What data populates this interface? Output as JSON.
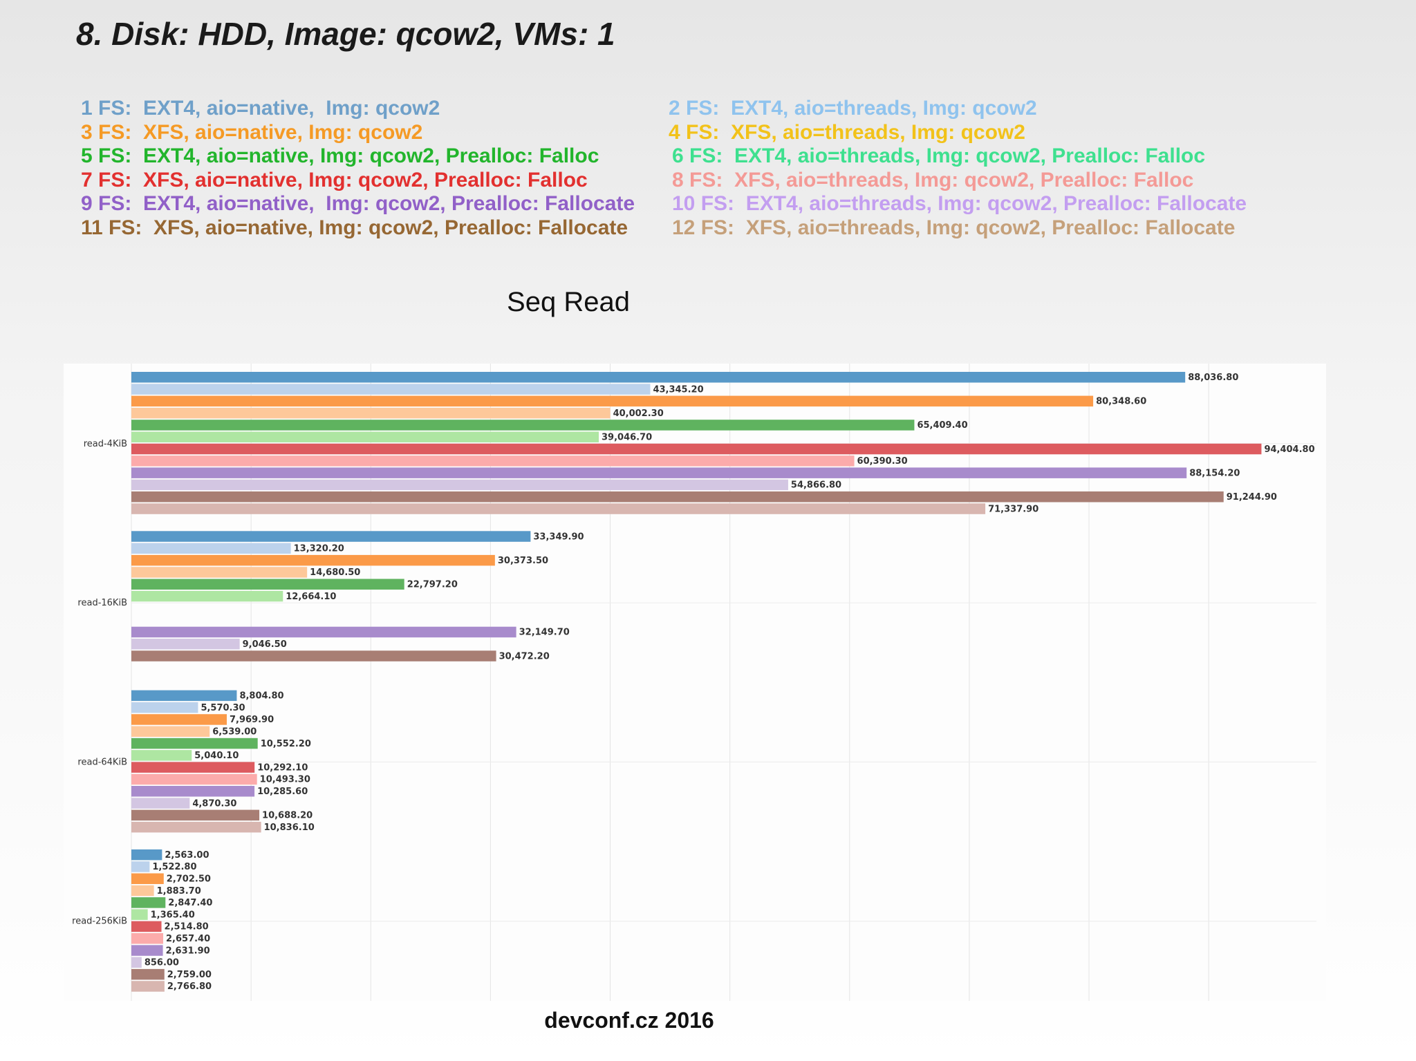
{
  "slide": {
    "title": "8. Disk: HDD, Image: qcow2, VMs: 1",
    "footer": "devconf.cz 2016"
  },
  "legend": [
    {
      "text": "1 FS:  EXT4, aio=native,  Img: qcow2",
      "color": "#6fa0c9"
    },
    {
      "text": "2 FS:  EXT4, aio=threads, Img: qcow2",
      "color": "#8fc3ee"
    },
    {
      "text": "3 FS:  XFS, aio=native, Img: qcow2",
      "color": "#f59a25"
    },
    {
      "text": "4 FS:  XFS, aio=threads, Img: qcow2",
      "color": "#f2c21a"
    },
    {
      "text": "5 FS:  EXT4, aio=native, Img: qcow2, Prealloc: Falloc",
      "color": "#22b52c"
    },
    {
      "text": "6 FS:  EXT4, aio=threads, Img: qcow2, Prealloc: Falloc",
      "color": "#3ee08f"
    },
    {
      "text": "7 FS:  XFS, aio=native, Img: qcow2, Prealloc: Falloc",
      "color": "#e2302f"
    },
    {
      "text": "8 FS:  XFS, aio=threads, Img: qcow2, Prealloc: Falloc",
      "color": "#f49a96"
    },
    {
      "text": "9 FS:  EXT4, aio=native,  Img: qcow2, Prealloc: Fallocate",
      "color": "#9160c8"
    },
    {
      "text": "10 FS:  EXT4, aio=threads, Img: qcow2, Prealloc: Fallocate",
      "color": "#c39ef0"
    },
    {
      "text": "11 FS:  XFS, aio=native, Img: qcow2, Prealloc: Fallocate",
      "color": "#966733"
    },
    {
      "text": "12 FS:  XFS, aio=threads, Img: qcow2, Prealloc: Fallocate",
      "color": "#c5a07a"
    }
  ],
  "chart_data": {
    "type": "bar",
    "orientation": "horizontal",
    "title": "Seq Read",
    "xlabel": "",
    "ylabel": "",
    "xlim": [
      0,
      99000
    ],
    "grid": true,
    "show_value_labels": true,
    "categories": [
      "read-4KiB",
      "read-16KiB",
      "read-64KiB",
      "read-256KiB"
    ],
    "series": [
      {
        "color": "#5899c8",
        "values": [
          88036.8,
          33349.9,
          8804.8,
          2563.0
        ],
        "labels": [
          "88,036.80",
          "33,349.90",
          "8,804.80",
          "2,563.00"
        ]
      },
      {
        "color": "#bcd2ec",
        "values": [
          43345.2,
          13320.2,
          5570.3,
          1522.8
        ],
        "labels": [
          "43,345.20",
          "13,320.20",
          "5,570.30",
          "1,522.80"
        ]
      },
      {
        "color": "#fb9a48",
        "values": [
          80348.6,
          30373.5,
          7969.9,
          2702.5
        ],
        "labels": [
          "80,348.60",
          "30,373.50",
          "7,969.90",
          "2,702.50"
        ]
      },
      {
        "color": "#fdc89a",
        "values": [
          40002.3,
          14680.5,
          6539.0,
          1883.7
        ],
        "labels": [
          "40,002.30",
          "14,680.50",
          "6,539.00",
          "1,883.70"
        ]
      },
      {
        "color": "#5fb35f",
        "values": [
          65409.4,
          22797.2,
          10552.2,
          2847.4
        ],
        "labels": [
          "65,409.40",
          "22,797.20",
          "10,552.20",
          "2,847.40"
        ]
      },
      {
        "color": "#aee6a2",
        "values": [
          39046.7,
          12664.1,
          5040.1,
          1365.4
        ],
        "labels": [
          "39,046.70",
          "12,664.10",
          "5,040.10",
          "1,365.40"
        ]
      },
      {
        "color": "#dd5b5f",
        "values": [
          94404.8,
          null,
          10292.1,
          2514.8
        ],
        "labels": [
          "94,404.80",
          null,
          "10,292.10",
          "2,514.80"
        ]
      },
      {
        "color": "#fcabab",
        "values": [
          60390.3,
          null,
          10493.3,
          2657.4
        ],
        "labels": [
          "60,390.30",
          null,
          "10,493.30",
          "2,657.40"
        ]
      },
      {
        "color": "#a88bcc",
        "values": [
          88154.2,
          32149.7,
          10285.6,
          2631.9
        ],
        "labels": [
          "88,154.20",
          "32,149.70",
          "10,285.60",
          "2,631.90"
        ]
      },
      {
        "color": "#d3c6e2",
        "values": [
          54866.8,
          9046.5,
          4870.3,
          856.0
        ],
        "labels": [
          "54,866.80",
          "9,046.50",
          "4,870.30",
          "856.00"
        ]
      },
      {
        "color": "#a87e74",
        "values": [
          91244.9,
          30472.2,
          10688.2,
          2759.0
        ],
        "labels": [
          "91,244.90",
          "30,472.20",
          "10,688.20",
          "2,759.00"
        ]
      },
      {
        "color": "#d8b6b0",
        "values": [
          71337.9,
          null,
          10836.1,
          2766.8
        ],
        "labels": [
          "71,337.90",
          null,
          "10,836.10",
          "2,766.80"
        ]
      }
    ]
  }
}
